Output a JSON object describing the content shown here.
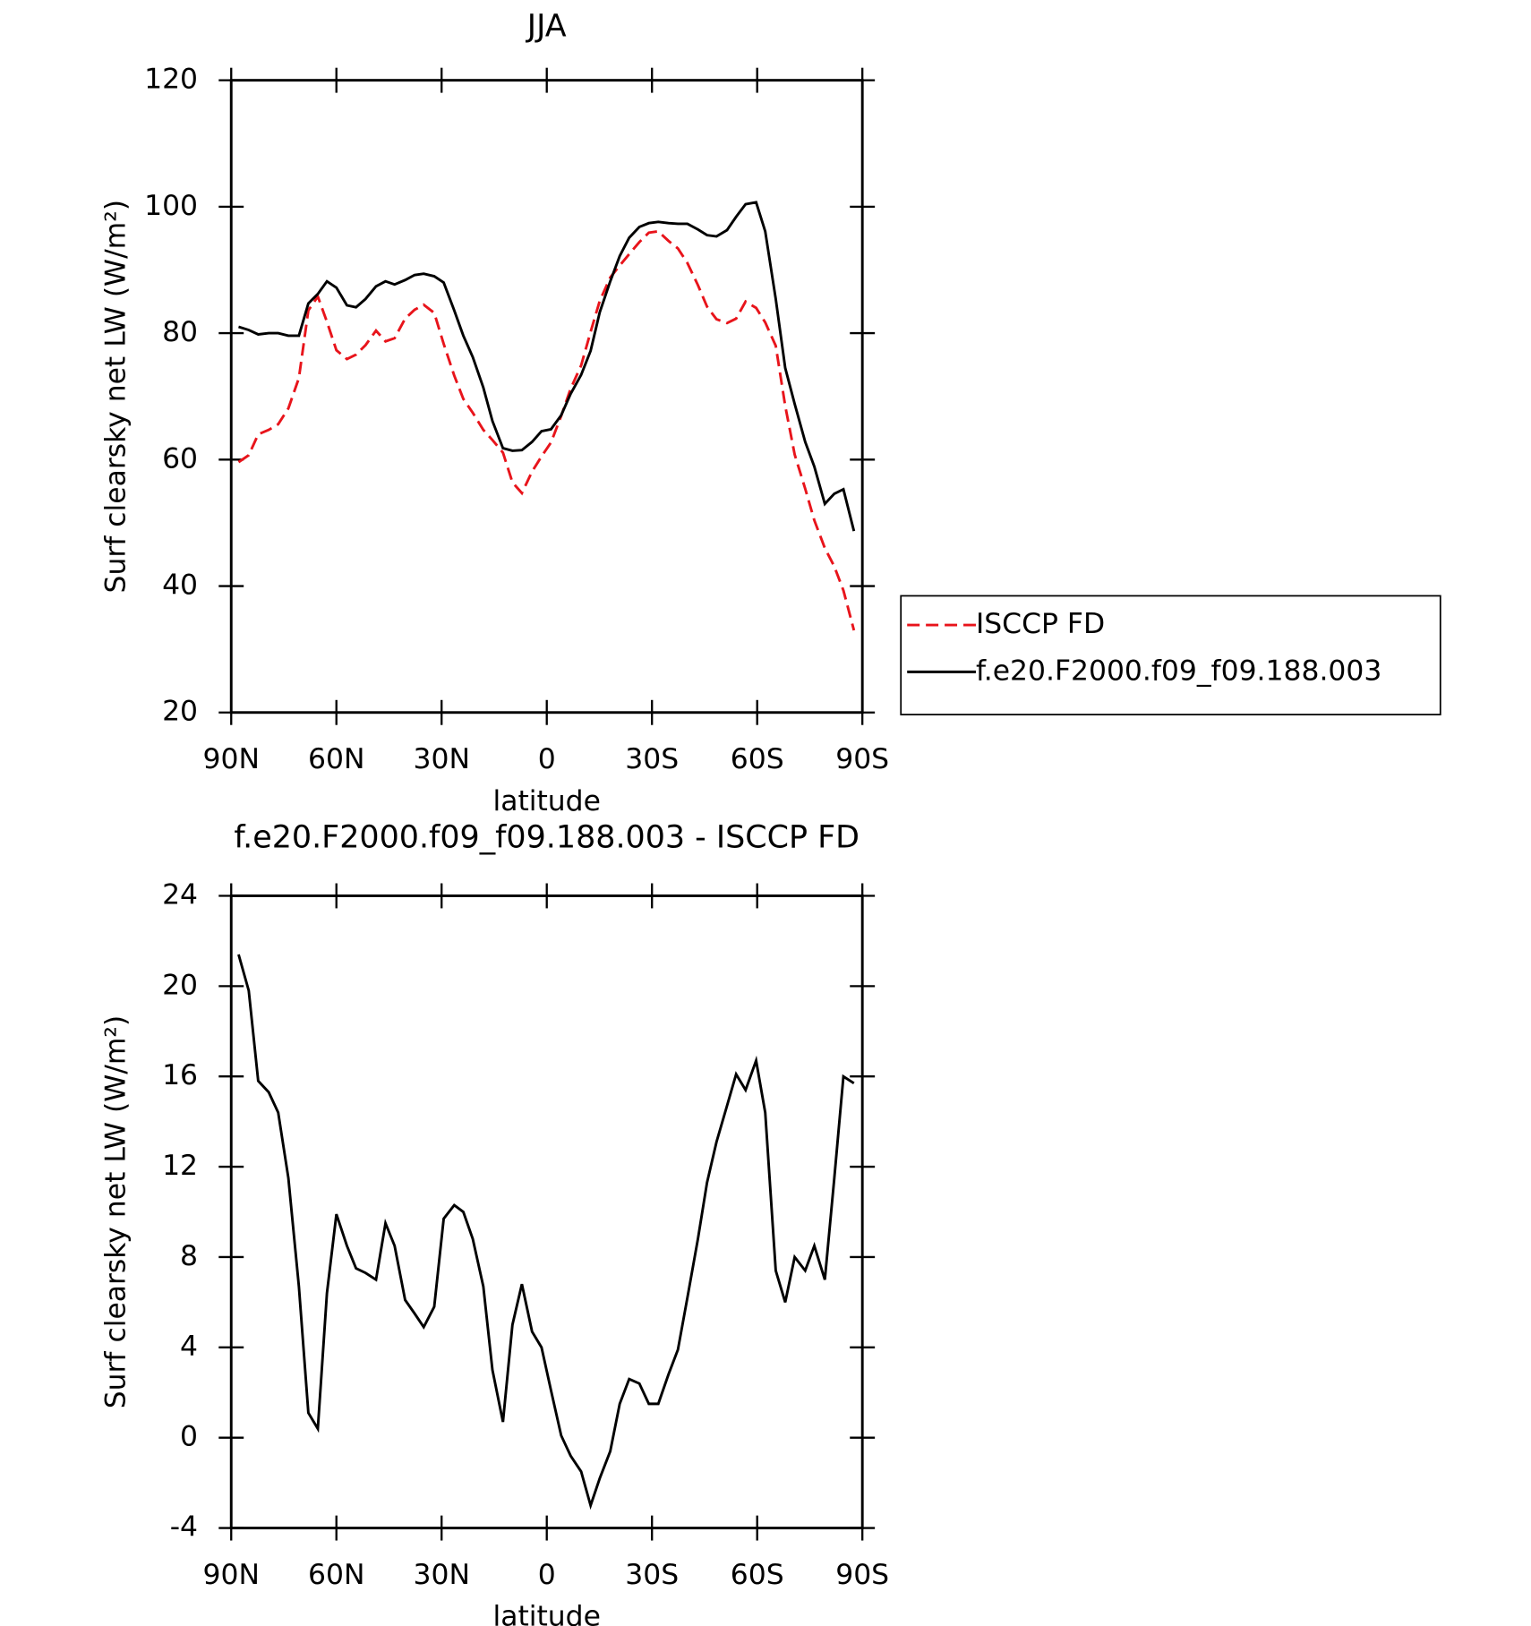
{
  "chart_data": [
    {
      "type": "line",
      "title": "JJA",
      "ylabel": "Surf clearsky net LW (W/m²)",
      "xlabel": "latitude",
      "x": [
        87.9,
        85.0,
        82.3,
        79.3,
        76.6,
        73.7,
        70.7,
        68.0,
        65.3,
        62.7,
        60.0,
        57.0,
        54.4,
        51.7,
        48.7,
        46.0,
        43.4,
        40.4,
        37.7,
        35.1,
        32.1,
        29.4,
        26.4,
        23.8,
        21.1,
        18.1,
        15.5,
        12.5,
        9.8,
        7.1,
        4.2,
        1.5,
        -1.2,
        -4.1,
        -6.8,
        -9.8,
        -12.5,
        -15.1,
        -18.1,
        -20.8,
        -23.5,
        -26.4,
        -29.1,
        -31.8,
        -34.7,
        -37.4,
        -40.1,
        -43.1,
        -45.7,
        -48.4,
        -51.4,
        -54.0,
        -56.7,
        -59.7,
        -62.3,
        -65.3,
        -68.0,
        -70.7,
        -73.7,
        -76.3,
        -79.3,
        -82.0,
        -84.6,
        -87.6
      ],
      "series": [
        {
          "name": "ISCCP FD",
          "color": "#e8141b",
          "style": "dashed",
          "values": [
            59.6,
            60.7,
            64.0,
            64.7,
            65.6,
            68.1,
            72.9,
            83.6,
            85.8,
            81.8,
            77.3,
            75.9,
            76.6,
            78.1,
            80.4,
            78.7,
            79.2,
            82.3,
            83.7,
            84.5,
            83.2,
            78.3,
            73.3,
            69.6,
            67.4,
            64.7,
            63.1,
            61.1,
            56.4,
            54.7,
            58.1,
            60.5,
            62.7,
            66.9,
            71.2,
            74.9,
            80.2,
            85.1,
            88.8,
            90.7,
            92.5,
            94.4,
            95.9,
            96.1,
            94.6,
            93.4,
            91.1,
            87.6,
            84.2,
            82.2,
            81.6,
            82.3,
            85.0,
            84.0,
            81.7,
            78.0,
            68.5,
            60.8,
            55.4,
            50.4,
            46.0,
            43.1,
            39.3,
            33.0
          ]
        },
        {
          "name": "f.e20.F2000.f09_f09.188.003",
          "color": "#000000",
          "style": "solid",
          "values": [
            81.0,
            80.5,
            79.8,
            80.0,
            80.0,
            79.6,
            79.6,
            84.7,
            86.2,
            88.2,
            87.2,
            84.4,
            84.1,
            85.4,
            87.4,
            88.2,
            87.7,
            88.4,
            89.2,
            89.4,
            89.0,
            88.0,
            83.6,
            79.6,
            76.2,
            71.4,
            66.1,
            61.8,
            61.4,
            61.5,
            62.8,
            64.5,
            64.8,
            67.0,
            70.4,
            73.4,
            77.2,
            83.3,
            88.2,
            92.2,
            95.1,
            96.8,
            97.4,
            97.6,
            97.4,
            97.3,
            97.3,
            96.4,
            95.5,
            95.3,
            96.3,
            98.4,
            100.4,
            100.7,
            96.1,
            85.4,
            74.5,
            68.8,
            62.8,
            58.9,
            53.0,
            54.6,
            55.3,
            48.7
          ]
        }
      ],
      "xlim": [
        90,
        -90
      ],
      "xticks": [
        {
          "value": 90,
          "label": "90N"
        },
        {
          "value": 60,
          "label": "60N"
        },
        {
          "value": 30,
          "label": "30N"
        },
        0,
        {
          "value": -30,
          "label": "30S"
        },
        {
          "value": -60,
          "label": "60S"
        },
        {
          "value": -90,
          "label": "90S"
        }
      ],
      "ylim": [
        20,
        120
      ],
      "yticks": [
        20,
        40,
        60,
        80,
        100,
        120
      ],
      "legend": "right"
    },
    {
      "type": "line",
      "title": "f.e20.F2000.f09_f09.188.003 - ISCCP FD",
      "ylabel": "Surf clearsky net LW (W/m²)",
      "xlabel": "latitude",
      "x": [
        87.9,
        85.0,
        82.3,
        79.3,
        76.6,
        73.7,
        70.7,
        68.0,
        65.3,
        62.7,
        60.0,
        57.0,
        54.4,
        51.7,
        48.7,
        46.0,
        43.4,
        40.4,
        37.7,
        35.1,
        32.1,
        29.4,
        26.4,
        23.8,
        21.1,
        18.1,
        15.5,
        12.5,
        9.8,
        7.1,
        4.2,
        1.5,
        -1.2,
        -4.1,
        -6.8,
        -9.8,
        -12.5,
        -15.1,
        -18.1,
        -20.8,
        -23.5,
        -26.4,
        -29.1,
        -31.8,
        -34.7,
        -37.4,
        -40.1,
        -43.1,
        -45.7,
        -48.4,
        -51.4,
        -54.0,
        -56.7,
        -59.7,
        -62.3,
        -65.3,
        -68.0,
        -70.7,
        -73.7,
        -76.3,
        -79.3,
        -82.0,
        -84.6,
        -87.6
      ],
      "series": [
        {
          "color": "#000000",
          "style": "solid",
          "values": [
            21.4,
            19.8,
            15.8,
            15.3,
            14.4,
            11.5,
            6.7,
            1.1,
            0.4,
            6.4,
            9.9,
            8.5,
            7.5,
            7.3,
            7.0,
            9.5,
            8.5,
            6.1,
            5.5,
            4.9,
            5.8,
            9.7,
            10.3,
            10.0,
            8.8,
            6.7,
            3.0,
            0.7,
            5.0,
            6.8,
            4.7,
            4.0,
            2.1,
            0.1,
            -0.8,
            -1.5,
            -3.0,
            -1.8,
            -0.6,
            1.5,
            2.6,
            2.4,
            1.5,
            1.5,
            2.8,
            3.9,
            6.2,
            8.8,
            11.3,
            13.1,
            14.7,
            16.1,
            15.4,
            16.7,
            14.4,
            7.4,
            6.0,
            8.0,
            7.4,
            8.5,
            7.0,
            11.5,
            16.0,
            15.7
          ]
        }
      ],
      "xlim": [
        90,
        -90
      ],
      "xticks": [
        {
          "value": 90,
          "label": "90N"
        },
        {
          "value": 60,
          "label": "60N"
        },
        {
          "value": 30,
          "label": "30N"
        },
        0,
        {
          "value": -30,
          "label": "30S"
        },
        {
          "value": -60,
          "label": "60S"
        },
        {
          "value": -90,
          "label": "90S"
        }
      ],
      "ylim": [
        -4,
        24
      ],
      "yticks": [
        -4,
        0,
        4,
        8,
        12,
        16,
        20,
        24
      ]
    }
  ]
}
